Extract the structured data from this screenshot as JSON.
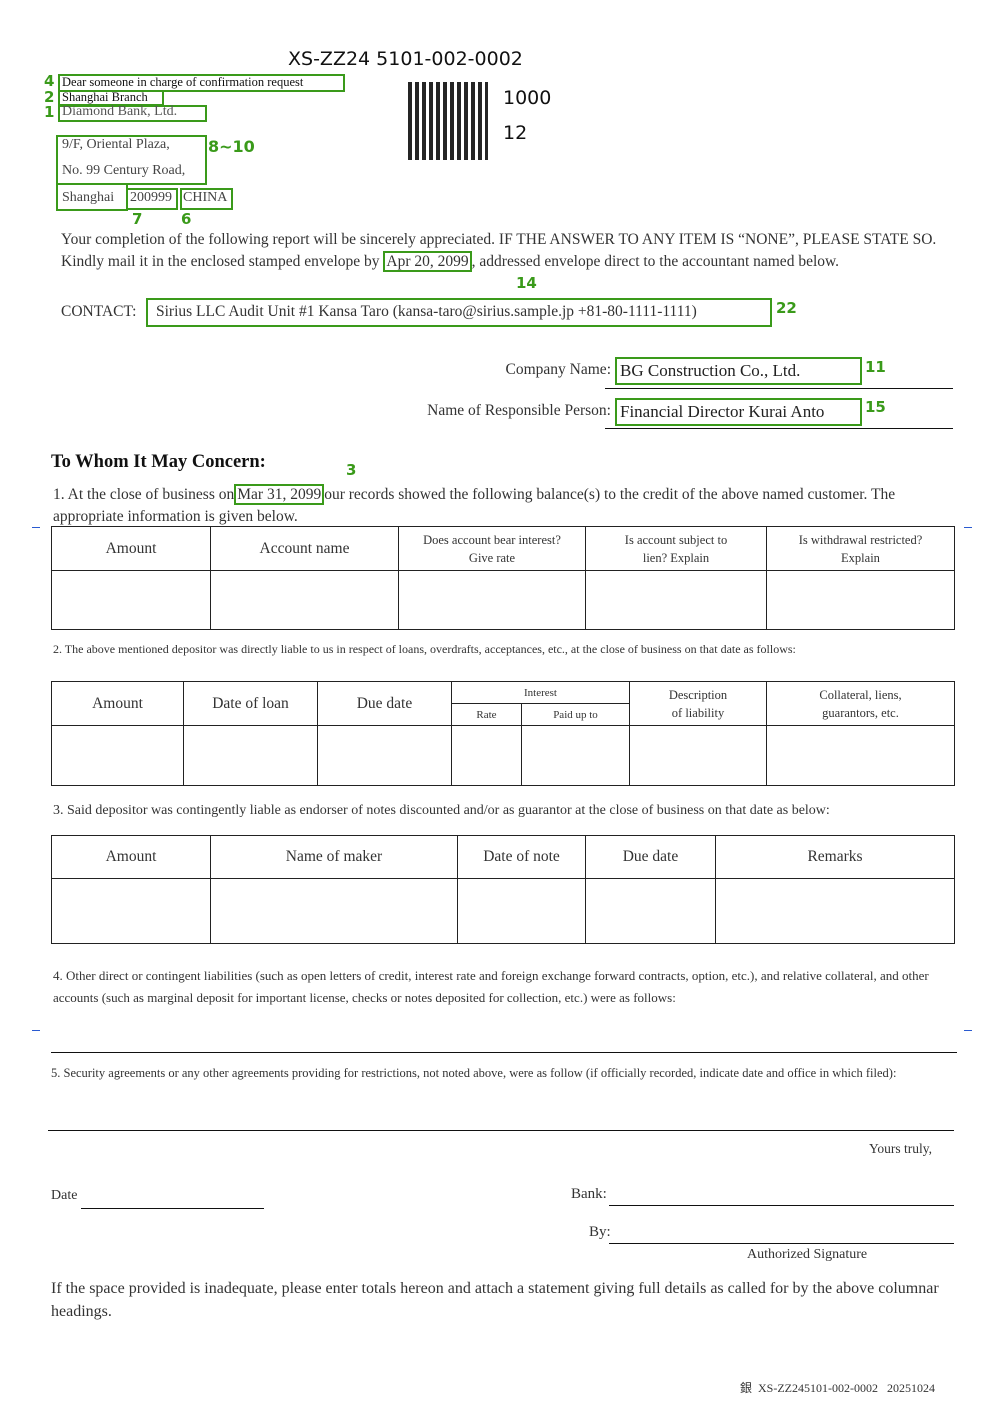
{
  "header": {
    "doc_code": "XS-ZZ24 5101-002-0002",
    "qr_number_1": "1000",
    "qr_number_2": "12"
  },
  "addressee": {
    "attention": "Dear someone in charge of confirmation request",
    "branch": "Shanghai Branch",
    "bank": "Diamond Bank, Ltd.",
    "address_line1": "9/F, Oriental Plaza,",
    "address_line2": "No. 99 Century Road,",
    "city": "Shanghai",
    "postal_code": "200999",
    "country": "CHINA"
  },
  "markers": {
    "attention": "4",
    "branch": "2",
    "bank": "1",
    "address": "8~10",
    "postal_code": "7",
    "country": "6",
    "due_date": "14",
    "contact": "22",
    "company": "11",
    "person": "15",
    "as_of_date": "3"
  },
  "intro": {
    "text_before": "Your completion of the following report will be sincerely appreciated. IF THE ANSWER TO ANY ITEM IS “NONE”, PLEASE STATE SO. Kindly mail it in the enclosed stamped envelope by ",
    "due_date": "Apr 20, 2099",
    "text_after": ", addressed envelope direct to the accountant named below.",
    "contact_label": "CONTACT:",
    "contact_value": "Sirius LLC  Audit Unit #1 Kansa Taro (kansa-taro@sirius.sample.jp +81-80-1111-1111)"
  },
  "client": {
    "company_label": "Company Name:",
    "company_value": "BG Construction Co., Ltd.",
    "person_label": "Name of Responsible Person:",
    "person_value": "Financial Director Kurai Anto"
  },
  "salutation": "To Whom It May Concern:",
  "item1": {
    "before": "1. At the close of business on",
    "date": "Mar 31, 2099",
    "after": "our records showed the following balance(s) to the credit of the above named customer. The appropriate information is given below.",
    "columns": [
      "Amount",
      "Account name",
      "Does account bear interest?\nGive rate",
      "Is account subject to\nlien?  Explain",
      "Is withdrawal restricted?\nExplain"
    ]
  },
  "item2": {
    "text": "2. The above mentioned depositor was directly liable to us in respect of loans, overdrafts, acceptances, etc., at the close of business on that date as follows:",
    "columns": [
      "Amount",
      "Date of loan",
      "Due date",
      "Interest",
      "Description\nof liability",
      "Collateral, liens,\nguarantors, etc."
    ],
    "interest_sub": [
      "Rate",
      "Paid up to"
    ]
  },
  "item3": {
    "text": "3. Said depositor was contingently liable as endorser of notes discounted and/or as guarantor at the close of business on that date as below:",
    "columns": [
      "Amount",
      "Name of maker",
      "Date of note",
      "Due date",
      "Remarks"
    ]
  },
  "item4": {
    "text": "4. Other direct or contingent liabilities (such as open letters of credit, interest rate and foreign exchange forward contracts, option, etc.), and relative collateral, and other accounts (such as marginal deposit for important license, checks or notes deposited for collection, etc.) were as follows:"
  },
  "item5": {
    "text": "5. Security agreements or any other agreements providing for restrictions, not noted above, were as follow (if officially recorded, indicate date and office in which filed):"
  },
  "signature": {
    "closing": "Yours truly,",
    "date_label": "Date",
    "bank_label": "Bank:",
    "by_label": "By:",
    "authorized": "Authorized Signature"
  },
  "footnote": "If the space provided is inadequate, please enter totals hereon and attach a statement giving full details as called for by the above columnar headings.",
  "footer": {
    "mark": "銀",
    "code": "XS-ZZ245101-002-0002",
    "date": "20251024"
  }
}
